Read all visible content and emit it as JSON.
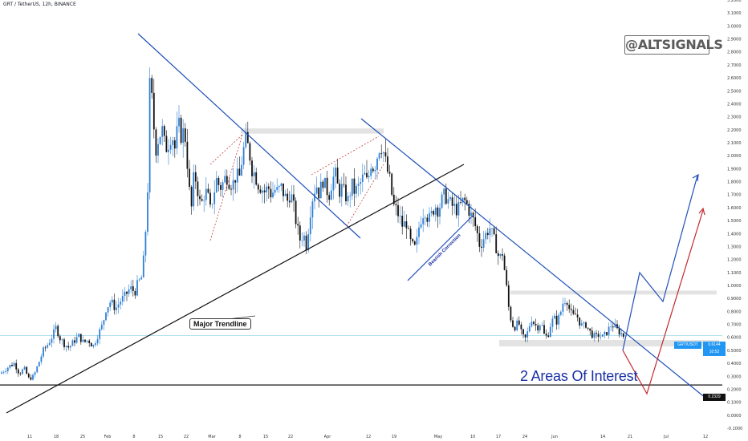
{
  "header": {
    "symbol_line": "GRT / TetherUS, 12h, BINANCE"
  },
  "watermark": "@ALTSIGNALS",
  "annotations": {
    "major_trendline": "Major Trendline",
    "bearish_correction": "Bearish Correction",
    "areas_of_interest": "2 Areas Of Interest"
  },
  "colors": {
    "up_candle": "#2f7fd6",
    "down_candle": "#111111",
    "trendline_blue": "#1f4fb8",
    "major_trendline": "#111111",
    "projection_red": "#c0282d",
    "zone_gray": "#e3e3e3",
    "current_price_line": "#9ad7e6",
    "current_price_tag": "#2196f3",
    "support_tag": "#111111",
    "annotation_text": "#1a2fa6"
  },
  "chart_data": {
    "type": "candlestick",
    "symbol": "GRT / TetherUS",
    "interval": "12h",
    "exchange": "BINANCE",
    "y_axis": {
      "ticks": [
        "3.2000",
        "3.1000",
        "3.0000",
        "2.9000",
        "2.8000",
        "2.7000",
        "2.6000",
        "2.5000",
        "2.4000",
        "2.3000",
        "2.2000",
        "2.1000",
        "2.0000",
        "1.9000",
        "1.8000",
        "1.7000",
        "1.6000",
        "1.5000",
        "1.4000",
        "1.3000",
        "1.2000",
        "1.1000",
        "1.0000",
        "0.9000",
        "0.8000",
        "0.7000",
        "0.6000",
        "0.5000",
        "0.4000",
        "0.3000",
        "0.2000",
        "0.1000",
        "0.0000",
        "-0.1000"
      ],
      "range": [
        -0.1,
        3.2
      ]
    },
    "x_axis": {
      "ticks": [
        "11",
        "18",
        "25",
        "Feb",
        "8",
        "15",
        "22",
        "Mar",
        "8",
        "15",
        "22",
        "Apr",
        "12",
        "19",
        "May",
        "10",
        "17",
        "24",
        "Jun",
        "14",
        "21",
        "Jul",
        "12"
      ]
    },
    "current_price": {
      "symbol": "GRT/USDT",
      "value": "0.6144",
      "countdown": "10:52"
    },
    "support_level": "0.2329",
    "zones": [
      {
        "name": "resistance-feb",
        "from": 2.17,
        "to": 2.21
      },
      {
        "name": "upper-target",
        "from": 0.93,
        "to": 0.96
      },
      {
        "name": "lower-support",
        "from": 0.53,
        "to": 0.58
      }
    ],
    "close_path": [
      [
        0,
        0.32
      ],
      [
        6,
        0.35
      ],
      [
        12,
        0.38
      ],
      [
        18,
        0.4
      ],
      [
        24,
        0.32
      ],
      [
        30,
        0.36
      ],
      [
        36,
        0.28
      ],
      [
        42,
        0.3
      ],
      [
        48,
        0.4
      ],
      [
        54,
        0.5
      ],
      [
        60,
        0.55
      ],
      [
        66,
        0.62
      ],
      [
        70,
        0.68
      ],
      [
        74,
        0.6
      ],
      [
        80,
        0.55
      ],
      [
        86,
        0.52
      ],
      [
        92,
        0.57
      ],
      [
        98,
        0.61
      ],
      [
        104,
        0.56
      ],
      [
        110,
        0.58
      ],
      [
        116,
        0.53
      ],
      [
        122,
        0.62
      ],
      [
        128,
        0.7
      ],
      [
        132,
        0.82
      ],
      [
        138,
        0.88
      ],
      [
        144,
        0.82
      ],
      [
        150,
        0.88
      ],
      [
        156,
        0.92
      ],
      [
        162,
        0.98
      ],
      [
        168,
        0.95
      ],
      [
        172,
        1.02
      ],
      [
        176,
        1.05
      ],
      [
        180,
        1.25
      ],
      [
        184,
        1.75
      ],
      [
        187,
        2.65
      ],
      [
        190,
        2.35
      ],
      [
        194,
        2.05
      ],
      [
        198,
        2.15
      ],
      [
        202,
        2.2
      ],
      [
        206,
        2.05
      ],
      [
        210,
        2.1
      ],
      [
        214,
        2.18
      ],
      [
        218,
        2.05
      ],
      [
        222,
        2.25
      ],
      [
        226,
        2.15
      ],
      [
        230,
        2.2
      ],
      [
        234,
        1.9
      ],
      [
        238,
        1.55
      ],
      [
        242,
        1.88
      ],
      [
        246,
        1.75
      ],
      [
        250,
        1.6
      ],
      [
        254,
        1.7
      ],
      [
        258,
        1.72
      ],
      [
        262,
        1.58
      ],
      [
        266,
        1.7
      ],
      [
        270,
        1.82
      ],
      [
        274,
        1.75
      ],
      [
        278,
        1.79
      ],
      [
        282,
        1.85
      ],
      [
        286,
        1.8
      ],
      [
        290,
        1.78
      ],
      [
        294,
        1.85
      ],
      [
        298,
        1.82
      ],
      [
        302,
        2.0
      ],
      [
        306,
        2.12
      ],
      [
        310,
        2.05
      ],
      [
        314,
        1.9
      ],
      [
        318,
        1.85
      ],
      [
        322,
        1.78
      ],
      [
        326,
        1.75
      ],
      [
        330,
        1.72
      ],
      [
        334,
        1.76
      ],
      [
        338,
        1.7
      ],
      [
        342,
        1.74
      ],
      [
        346,
        1.72
      ],
      [
        350,
        1.76
      ],
      [
        354,
        1.7
      ],
      [
        358,
        1.65
      ],
      [
        362,
        1.72
      ],
      [
        366,
        1.6
      ],
      [
        370,
        1.45
      ],
      [
        374,
        1.35
      ],
      [
        378,
        1.4
      ],
      [
        382,
        1.3
      ],
      [
        386,
        1.55
      ],
      [
        390,
        1.7
      ],
      [
        394,
        1.78
      ],
      [
        398,
        1.7
      ],
      [
        402,
        1.82
      ],
      [
        406,
        1.75
      ],
      [
        410,
        1.7
      ],
      [
        414,
        1.82
      ],
      [
        418,
        1.85
      ],
      [
        422,
        1.72
      ],
      [
        426,
        1.75
      ],
      [
        430,
        1.7
      ],
      [
        434,
        1.65
      ],
      [
        438,
        1.78
      ],
      [
        442,
        1.72
      ],
      [
        446,
        1.75
      ],
      [
        450,
        1.8
      ],
      [
        454,
        1.85
      ],
      [
        458,
        1.78
      ],
      [
        462,
        1.95
      ],
      [
        466,
        1.9
      ],
      [
        470,
        2.0
      ],
      [
        474,
        2.1
      ],
      [
        478,
        2.02
      ],
      [
        482,
        1.9
      ],
      [
        486,
        1.8
      ],
      [
        490,
        1.62
      ],
      [
        494,
        1.58
      ],
      [
        498,
        1.52
      ],
      [
        502,
        1.45
      ],
      [
        506,
        1.5
      ],
      [
        510,
        1.35
      ],
      [
        514,
        1.3
      ],
      [
        518,
        1.28
      ],
      [
        522,
        1.45
      ],
      [
        526,
        1.55
      ],
      [
        530,
        1.58
      ],
      [
        534,
        1.5
      ],
      [
        538,
        1.55
      ],
      [
        542,
        1.62
      ],
      [
        546,
        1.58
      ],
      [
        550,
        1.65
      ],
      [
        554,
        1.7
      ],
      [
        558,
        1.66
      ],
      [
        562,
        1.62
      ],
      [
        566,
        1.6
      ],
      [
        570,
        1.58
      ],
      [
        574,
        1.62
      ],
      [
        578,
        1.66
      ],
      [
        582,
        1.62
      ],
      [
        586,
        1.55
      ],
      [
        590,
        1.5
      ],
      [
        594,
        1.42
      ],
      [
        598,
        1.3
      ],
      [
        602,
        1.36
      ],
      [
        606,
        1.4
      ],
      [
        610,
        1.45
      ],
      [
        614,
        1.38
      ],
      [
        618,
        1.3
      ],
      [
        622,
        1.2
      ],
      [
        626,
        1.25
      ],
      [
        630,
        1.05
      ],
      [
        634,
        0.82
      ],
      [
        638,
        0.7
      ],
      [
        642,
        0.68
      ],
      [
        646,
        0.72
      ],
      [
        650,
        0.62
      ],
      [
        654,
        0.58
      ],
      [
        658,
        0.65
      ],
      [
        662,
        0.75
      ],
      [
        666,
        0.7
      ],
      [
        670,
        0.68
      ],
      [
        674,
        0.72
      ],
      [
        678,
        0.62
      ],
      [
        682,
        0.6
      ],
      [
        686,
        0.7
      ],
      [
        690,
        0.75
      ],
      [
        694,
        0.72
      ],
      [
        698,
        0.78
      ],
      [
        702,
        0.88
      ],
      [
        706,
        0.9
      ],
      [
        710,
        0.8
      ],
      [
        714,
        0.76
      ],
      [
        718,
        0.78
      ],
      [
        722,
        0.72
      ],
      [
        726,
        0.68
      ],
      [
        730,
        0.7
      ],
      [
        734,
        0.65
      ],
      [
        738,
        0.62
      ],
      [
        742,
        0.6
      ],
      [
        746,
        0.62
      ],
      [
        750,
        0.6
      ],
      [
        754,
        0.62
      ],
      [
        758,
        0.66
      ],
      [
        762,
        0.7
      ],
      [
        766,
        0.68
      ],
      [
        770,
        0.65
      ],
      [
        774,
        0.63
      ],
      [
        777,
        0.61
      ]
    ]
  }
}
